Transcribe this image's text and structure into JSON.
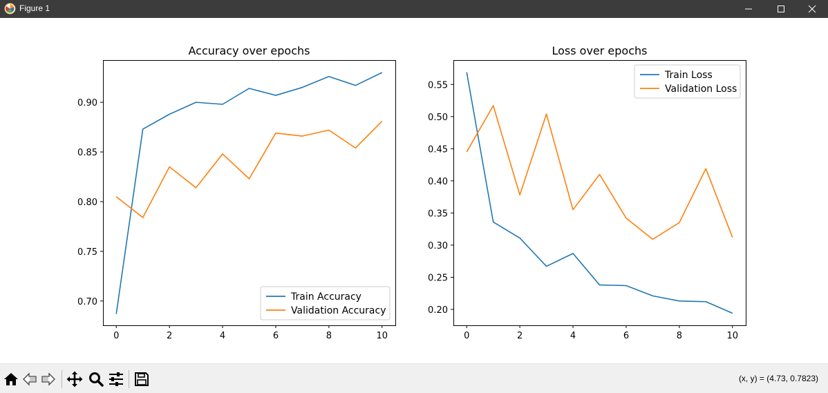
{
  "window": {
    "title": "Figure 1",
    "controls": [
      "minimize-icon",
      "maximize-icon",
      "close-icon"
    ]
  },
  "toolbar": {
    "buttons": [
      "home-icon",
      "back-icon",
      "forward-icon",
      "pan-icon",
      "zoom-icon",
      "configure-subplots-icon",
      "save-icon"
    ],
    "coordinates": "(x, y) = (4.73, 0.7823)"
  },
  "colors": {
    "train": "#1f77b4",
    "validation": "#ff7f0e"
  },
  "chart_data": [
    {
      "type": "line",
      "title": "Accuracy over epochs",
      "xlabel": "",
      "ylabel": "",
      "x": [
        0,
        1,
        2,
        3,
        4,
        5,
        6,
        7,
        8,
        9,
        10
      ],
      "series": [
        {
          "name": "Train Accuracy",
          "values": [
            0.687,
            0.873,
            0.888,
            0.9,
            0.898,
            0.914,
            0.907,
            0.915,
            0.926,
            0.917,
            0.93
          ]
        },
        {
          "name": "Validation Accuracy",
          "values": [
            0.805,
            0.784,
            0.835,
            0.814,
            0.848,
            0.823,
            0.869,
            0.866,
            0.872,
            0.854,
            0.881
          ]
        }
      ],
      "xlim": [
        -0.5,
        10.5
      ],
      "ylim": [
        0.6755,
        0.9425
      ],
      "xticks": [
        0,
        2,
        4,
        6,
        8,
        10
      ],
      "xtick_labels": [
        "0",
        "2",
        "4",
        "6",
        "8",
        "10"
      ],
      "yticks": [
        0.7,
        0.75,
        0.8,
        0.85,
        0.9
      ],
      "ytick_labels": [
        "0.70",
        "0.75",
        "0.80",
        "0.85",
        "0.90"
      ],
      "legend": "lower right",
      "grid": false
    },
    {
      "type": "line",
      "title": "Loss over epochs",
      "xlabel": "",
      "ylabel": "",
      "x": [
        0,
        1,
        2,
        3,
        4,
        5,
        6,
        7,
        8,
        9,
        10
      ],
      "series": [
        {
          "name": "Train Loss",
          "values": [
            0.569,
            0.336,
            0.311,
            0.267,
            0.287,
            0.238,
            0.237,
            0.221,
            0.213,
            0.212,
            0.194
          ]
        },
        {
          "name": "Validation Loss",
          "values": [
            0.445,
            0.517,
            0.378,
            0.504,
            0.355,
            0.41,
            0.342,
            0.309,
            0.335,
            0.419,
            0.312
          ]
        }
      ],
      "xlim": [
        -0.5,
        10.5
      ],
      "ylim": [
        0.1752,
        0.5879
      ],
      "xticks": [
        0,
        2,
        4,
        6,
        8,
        10
      ],
      "xtick_labels": [
        "0",
        "2",
        "4",
        "6",
        "8",
        "10"
      ],
      "yticks": [
        0.2,
        0.25,
        0.3,
        0.35,
        0.4,
        0.45,
        0.5,
        0.55
      ],
      "ytick_labels": [
        "0.20",
        "0.25",
        "0.30",
        "0.35",
        "0.40",
        "0.45",
        "0.50",
        "0.55"
      ],
      "legend": "upper right",
      "grid": false
    }
  ]
}
